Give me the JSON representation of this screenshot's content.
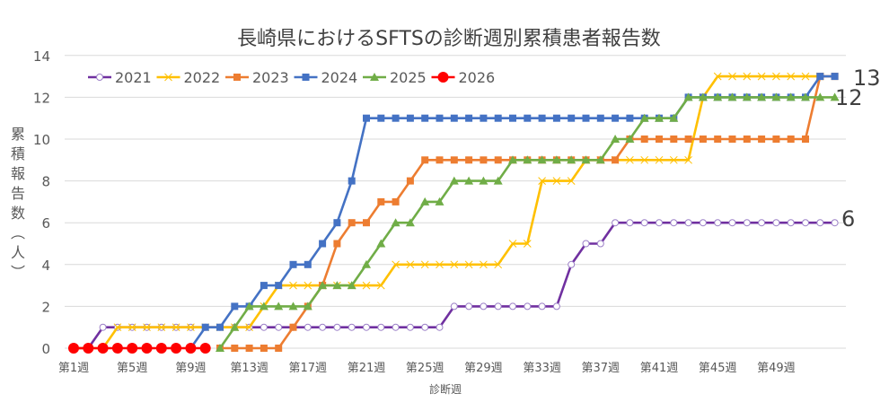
{
  "chart_data": {
    "type": "line",
    "title": "長崎県におけるSFTSの診断週別累積患者報告数",
    "xlabel": "診断週",
    "ylabel": "累積報告数（人）",
    "ylim": [
      0,
      14
    ],
    "yticks": [
      0,
      2,
      4,
      6,
      8,
      10,
      12,
      14
    ],
    "grid": true,
    "legend_position": "top",
    "x_tick_labels": [
      "第1週",
      "第5週",
      "第9週",
      "第13週",
      "第17週",
      "第21週",
      "第25週",
      "第29週",
      "第33週",
      "第37週",
      "第41週",
      "第45週",
      "第49週"
    ],
    "x": [
      1,
      2,
      3,
      4,
      5,
      6,
      7,
      8,
      9,
      10,
      11,
      12,
      13,
      14,
      15,
      16,
      17,
      18,
      19,
      20,
      21,
      22,
      23,
      24,
      25,
      26,
      27,
      28,
      29,
      30,
      31,
      32,
      33,
      34,
      35,
      36,
      37,
      38,
      39,
      40,
      41,
      42,
      43,
      44,
      45,
      46,
      47,
      48,
      49,
      50,
      51,
      52,
      53
    ],
    "series": [
      {
        "name": "2021",
        "color": "#7030A0",
        "marker": "open-circle",
        "values": [
          0,
          0,
          1,
          1,
          1,
          1,
          1,
          1,
          1,
          1,
          1,
          1,
          1,
          1,
          1,
          1,
          1,
          1,
          1,
          1,
          1,
          1,
          1,
          1,
          1,
          1,
          2,
          2,
          2,
          2,
          2,
          2,
          2,
          2,
          4,
          5,
          5,
          6,
          6,
          6,
          6,
          6,
          6,
          6,
          6,
          6,
          6,
          6,
          6,
          6,
          6,
          6,
          6
        ]
      },
      {
        "name": "2022",
        "color": "#FFC000",
        "marker": "x",
        "values": [
          0,
          0,
          0,
          1,
          1,
          1,
          1,
          1,
          1,
          1,
          1,
          1,
          1,
          2,
          3,
          3,
          3,
          3,
          3,
          3,
          3,
          3,
          4,
          4,
          4,
          4,
          4,
          4,
          4,
          4,
          5,
          5,
          8,
          8,
          8,
          9,
          9,
          9,
          9,
          9,
          9,
          9,
          9,
          12,
          13,
          13,
          13,
          13,
          13,
          13,
          13,
          13,
          null
        ]
      },
      {
        "name": "2023",
        "color": "#ED7D31",
        "marker": "square",
        "values": [
          null,
          null,
          null,
          null,
          null,
          null,
          null,
          null,
          null,
          null,
          0,
          0,
          0,
          0,
          0,
          1,
          2,
          3,
          5,
          6,
          6,
          7,
          7,
          8,
          9,
          9,
          9,
          9,
          9,
          9,
          9,
          9,
          9,
          9,
          9,
          9,
          9,
          9,
          10,
          10,
          10,
          10,
          10,
          10,
          10,
          10,
          10,
          10,
          10,
          10,
          10,
          13,
          13
        ]
      },
      {
        "name": "2024",
        "color": "#4472C4",
        "marker": "square",
        "values": [
          null,
          null,
          null,
          null,
          null,
          null,
          null,
          null,
          0,
          1,
          1,
          2,
          2,
          3,
          3,
          4,
          4,
          5,
          6,
          8,
          11,
          11,
          11,
          11,
          11,
          11,
          11,
          11,
          11,
          11,
          11,
          11,
          11,
          11,
          11,
          11,
          11,
          11,
          11,
          11,
          11,
          11,
          12,
          12,
          12,
          12,
          12,
          12,
          12,
          12,
          12,
          13,
          13
        ]
      },
      {
        "name": "2025",
        "color": "#70AD47",
        "marker": "triangle",
        "values": [
          null,
          null,
          null,
          null,
          null,
          null,
          null,
          null,
          null,
          null,
          0,
          1,
          2,
          2,
          2,
          2,
          2,
          3,
          3,
          3,
          4,
          5,
          6,
          6,
          7,
          7,
          8,
          8,
          8,
          8,
          9,
          9,
          9,
          9,
          9,
          9,
          9,
          10,
          10,
          11,
          11,
          11,
          12,
          12,
          12,
          12,
          12,
          12,
          12,
          12,
          12,
          12,
          12
        ]
      },
      {
        "name": "2026",
        "color": "#FF0000",
        "marker": "filled-circle",
        "values": [
          0,
          0,
          0,
          0,
          0,
          0,
          0,
          0,
          0,
          0
        ]
      }
    ],
    "end_labels": [
      {
        "series": "2023",
        "text": "13"
      },
      {
        "series": "2025",
        "text": "12"
      },
      {
        "series": "2021",
        "text": "6"
      }
    ]
  }
}
